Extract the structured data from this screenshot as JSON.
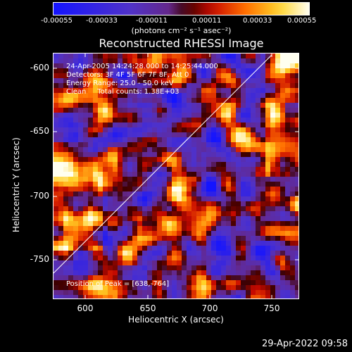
{
  "colorbar": {
    "ticks": [
      "-0.00055",
      "-0.00033",
      "-0.00011",
      "0.00011",
      "0.00033",
      "0.00055"
    ],
    "units": "(photons cm⁻² s⁻¹ asec⁻²)"
  },
  "title": "Reconstructed RHESSI Image",
  "info": {
    "time": "24-Apr-2005 14:24:28.000 to 14:25:44.000",
    "detectors": "Detectors: 3F 4F 5F 6F 7F 8F, Att 0",
    "energy": "Energy Range: 25.0 - 50.0 keV",
    "method": "Clean     Total counts: 1.38E+03",
    "peak": "Position of Peak = [638,-764]"
  },
  "x_axis": {
    "label": "Heliocentric X (arcsec)",
    "ticks": [
      "600",
      "650",
      "700",
      "750"
    ]
  },
  "y_axis": {
    "label": "Heliocentric Y (arcsec)",
    "ticks": [
      "-600",
      "-650",
      "-700",
      "-750"
    ]
  },
  "timestamp": "29-Apr-2022 09:58"
}
